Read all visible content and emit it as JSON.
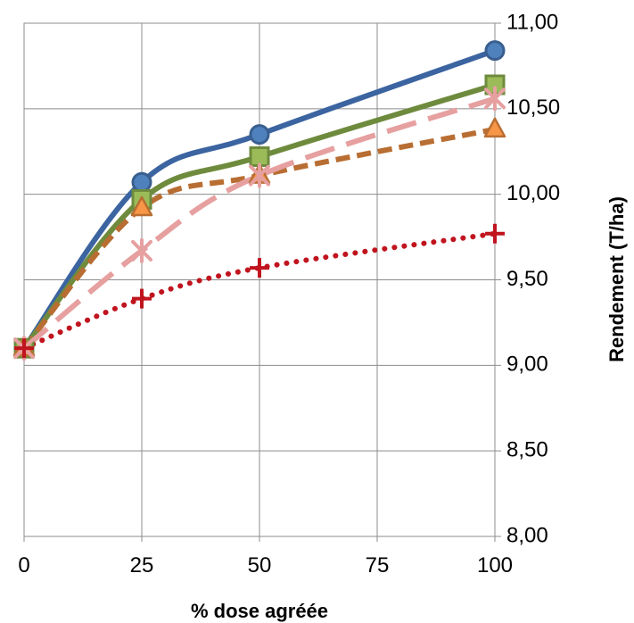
{
  "chart_data": {
    "type": "line",
    "title": "",
    "xlabel": "% dose agréée",
    "ylabel": "Rendement (T/ha)",
    "x_ticks": [
      "0",
      "25",
      "50",
      "75",
      "100"
    ],
    "y_ticks": [
      "8,00",
      "8,50",
      "9,00",
      "9,50",
      "10,00",
      "10,50",
      "11,00"
    ],
    "xlim": [
      0,
      100
    ],
    "ylim": [
      8.0,
      11.0
    ],
    "y_axis_side": "right",
    "grid": true,
    "legend": "none",
    "series": [
      {
        "x": [
          0,
          25,
          50,
          100
        ],
        "values": [
          9.1,
          10.07,
          10.35,
          10.84
        ],
        "color": "#3B64A0",
        "dash": "solid",
        "marker": "circle",
        "marker_fill": "#4F81BD",
        "marker_stroke": "#3A5F8F"
      },
      {
        "x": [
          0,
          25,
          50,
          100
        ],
        "values": [
          9.1,
          9.97,
          10.22,
          10.64
        ],
        "color": "#6E8B3D",
        "dash": "solid",
        "marker": "square",
        "marker_fill": "#9BBB59",
        "marker_stroke": "#6E8B3D"
      },
      {
        "x": [
          0,
          25,
          50,
          100
        ],
        "values": [
          9.1,
          9.92,
          10.11,
          10.38
        ],
        "color": "#B86E33",
        "dash": "dash",
        "marker": "triangle",
        "marker_fill": "#F79646",
        "marker_stroke": "#B86E33"
      },
      {
        "x": [
          0,
          25,
          50,
          100
        ],
        "values": [
          9.1,
          9.67,
          10.11,
          10.56
        ],
        "color": "#E6A0A0",
        "dash": "longdash",
        "marker": "x-star",
        "marker_fill": "none",
        "marker_stroke": "#E6A0A0"
      },
      {
        "x": [
          0,
          25,
          50,
          100
        ],
        "values": [
          9.1,
          9.39,
          9.57,
          9.77
        ],
        "color": "#C0141E",
        "dash": "dot",
        "marker": "plus",
        "marker_fill": "none",
        "marker_stroke": "#C0141E"
      }
    ]
  }
}
